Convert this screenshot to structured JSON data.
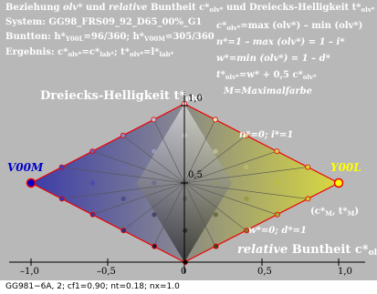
{
  "colors": {
    "background_panel": "#b8b8b8",
    "frame": "#ee0000",
    "axis": "#000000",
    "left_anchor": "#0000cc",
    "right_anchor": "#ffff00"
  },
  "header": {
    "line1_prefix": "Beziehung ",
    "line1_olv": "olv*",
    "line1_mid": " und ",
    "line1_rel": "relative",
    "line1_rest": " Buntheit c*",
    "line1_sub": "olv*",
    "line1_tail": " und Dreiecks-Helligkeit t*",
    "line1_tail_sub": "olv*",
    "line2": "System: GG98_FRS09_92_D65_00%_G1",
    "line3_prefix": "Buntton: h*",
    "line3_sub1": "Y00L",
    "line3_mid": "=96/360; h*",
    "line3_sub2": "V00M",
    "line3_tail": "=305/360",
    "line4_prefix": "Ergebnis: c*",
    "line4_sub1": "olv*",
    "line4_eq1": "=c*",
    "line4_sub2": "lab*",
    "line4_sep": "; t*",
    "line4_sub3": "olv*",
    "line4_eq2": "=l*",
    "line4_sub4": "lab*"
  },
  "formulas": {
    "f1_a": "c*",
    "f1_a_sub": "olv*",
    "f1_b": "=max (olv*) – min (olv*)",
    "f2": "n*=1 – max (olv*) = 1 – i*",
    "f3": "w*=min (olv*) = 1 – d*",
    "f4_a": "t*",
    "f4_a_sub": "olv*",
    "f4_b": "=w* + 0,5 c*",
    "f4_b_sub": "olv*",
    "f5": "M=Maximalfarbe"
  },
  "labels": {
    "triangle_brightness": "Dreiecks-Helligkeit  t*",
    "triangle_brightness_sub": "olv*",
    "y_top": "1,0",
    "y_mid": "0,5",
    "left_anchor": "V00M",
    "right_anchor": "Y00L",
    "n0_i1": "n*=0; i*=1",
    "cM_tM": "(c*",
    "cM_tM_sub": "M",
    "cM_tM_rest": ", t*",
    "cM_tM_sub2": "M",
    "cM_tM_close": ")",
    "w0_d1": "w*=0; d*=1",
    "relative_buntheit_a": "relative",
    "relative_buntheit_b": " Buntheit c*",
    "relative_buntheit_sub": "olv*"
  },
  "x_ticks": [
    "–1,0",
    "–0,5",
    "0",
    "0,5",
    "1,0"
  ],
  "footer": "GG981−6A, 2; cf1=0.90; nt=0.18; nx=1.0"
}
